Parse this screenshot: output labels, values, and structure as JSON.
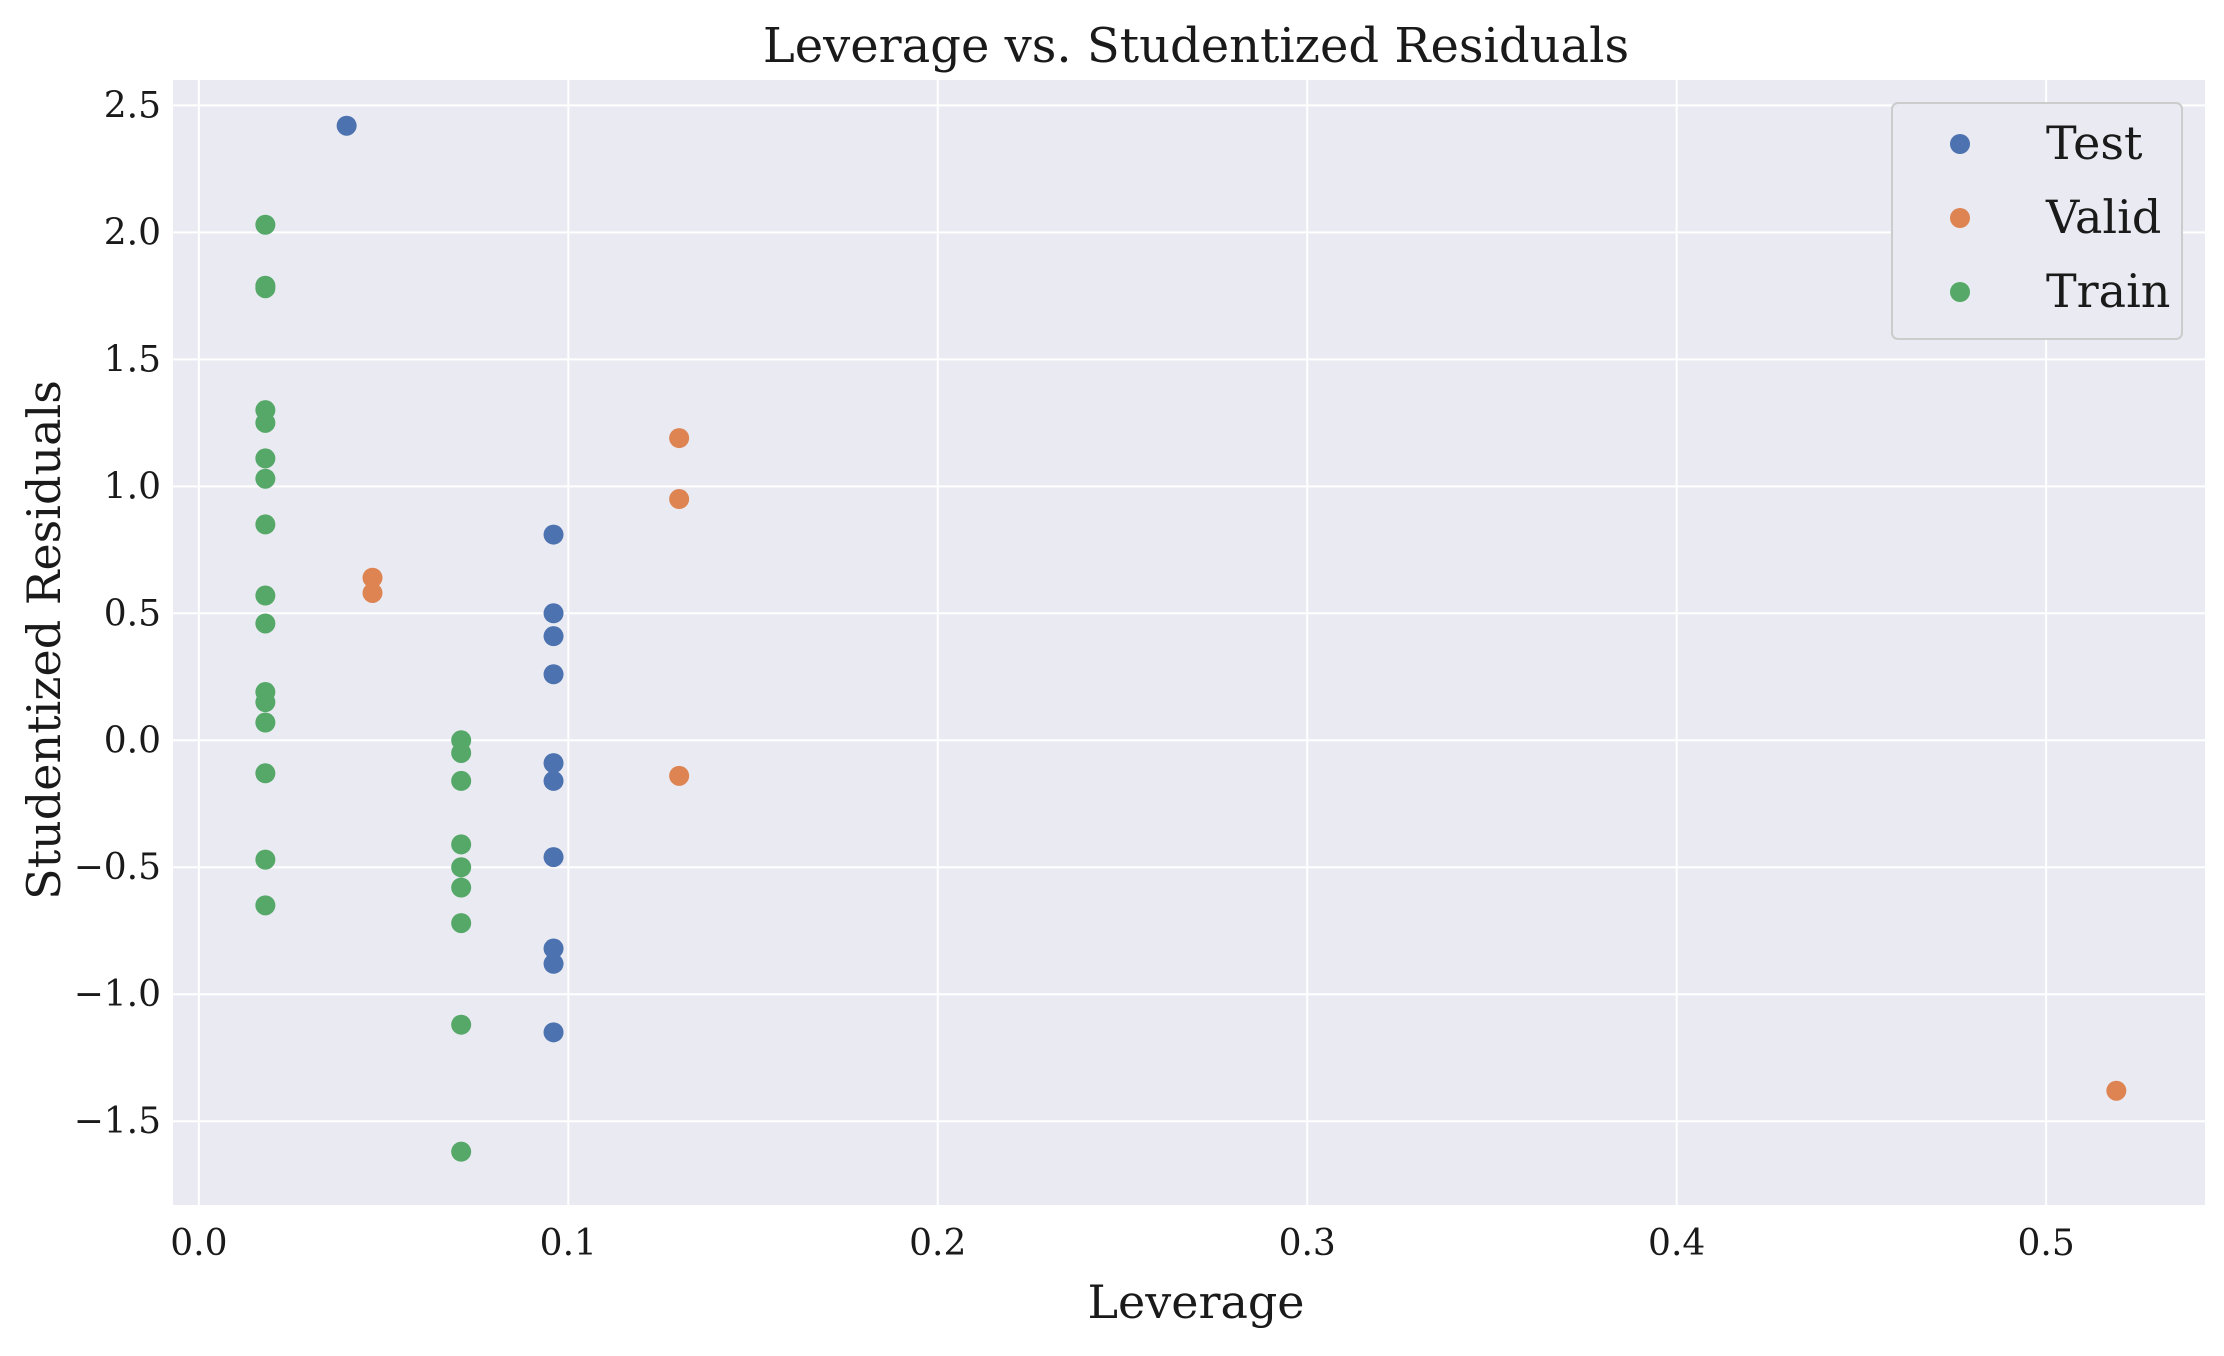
{
  "chart_data": {
    "type": "scatter",
    "title": "Leverage vs. Studentized Residuals",
    "xlabel": "Leverage",
    "ylabel": "Studentized Residuals",
    "xlim": [
      -0.007,
      0.543
    ],
    "ylim": [
      -1.83,
      2.6
    ],
    "xticks": [
      0.0,
      0.1,
      0.2,
      0.3,
      0.4,
      0.5
    ],
    "xtick_labels": [
      "0.0",
      "0.1",
      "0.2",
      "0.3",
      "0.4",
      "0.5"
    ],
    "yticks": [
      -1.5,
      -1.0,
      -0.5,
      0.0,
      0.5,
      1.0,
      1.5,
      2.0,
      2.5
    ],
    "ytick_labels": [
      "−1.5",
      "−1.0",
      "−0.5",
      "0.0",
      "0.5",
      "1.0",
      "1.5",
      "2.0",
      "2.5"
    ],
    "grid": true,
    "background": "#eaeaf2",
    "grid_color": "#ffffff",
    "legend_position": "top-right",
    "series": [
      {
        "name": "Test",
        "color": "#4c72b0",
        "points": [
          [
            0.04,
            2.42
          ],
          [
            0.096,
            0.81
          ],
          [
            0.096,
            0.5
          ],
          [
            0.096,
            0.41
          ],
          [
            0.096,
            0.26
          ],
          [
            0.096,
            -0.09
          ],
          [
            0.096,
            -0.16
          ],
          [
            0.096,
            -0.46
          ],
          [
            0.096,
            -0.82
          ],
          [
            0.096,
            -0.88
          ],
          [
            0.096,
            -1.15
          ]
        ]
      },
      {
        "name": "Valid",
        "color": "#dd8452",
        "points": [
          [
            0.047,
            0.64
          ],
          [
            0.047,
            0.58
          ],
          [
            0.13,
            1.19
          ],
          [
            0.13,
            0.95
          ],
          [
            0.13,
            -0.14
          ],
          [
            0.519,
            -1.38
          ]
        ]
      },
      {
        "name": "Train",
        "color": "#55a868",
        "points": [
          [
            0.018,
            2.03
          ],
          [
            0.018,
            1.79
          ],
          [
            0.018,
            1.78
          ],
          [
            0.018,
            1.3
          ],
          [
            0.018,
            1.25
          ],
          [
            0.018,
            1.11
          ],
          [
            0.018,
            1.03
          ],
          [
            0.018,
            0.85
          ],
          [
            0.018,
            0.57
          ],
          [
            0.018,
            0.46
          ],
          [
            0.018,
            0.19
          ],
          [
            0.018,
            0.15
          ],
          [
            0.018,
            0.07
          ],
          [
            0.018,
            -0.13
          ],
          [
            0.018,
            -0.47
          ],
          [
            0.018,
            -0.65
          ],
          [
            0.071,
            0.0
          ],
          [
            0.071,
            -0.05
          ],
          [
            0.071,
            -0.16
          ],
          [
            0.071,
            -0.41
          ],
          [
            0.071,
            -0.5
          ],
          [
            0.071,
            -0.58
          ],
          [
            0.071,
            -0.72
          ],
          [
            0.071,
            -1.12
          ],
          [
            0.071,
            -1.62
          ]
        ]
      }
    ]
  }
}
